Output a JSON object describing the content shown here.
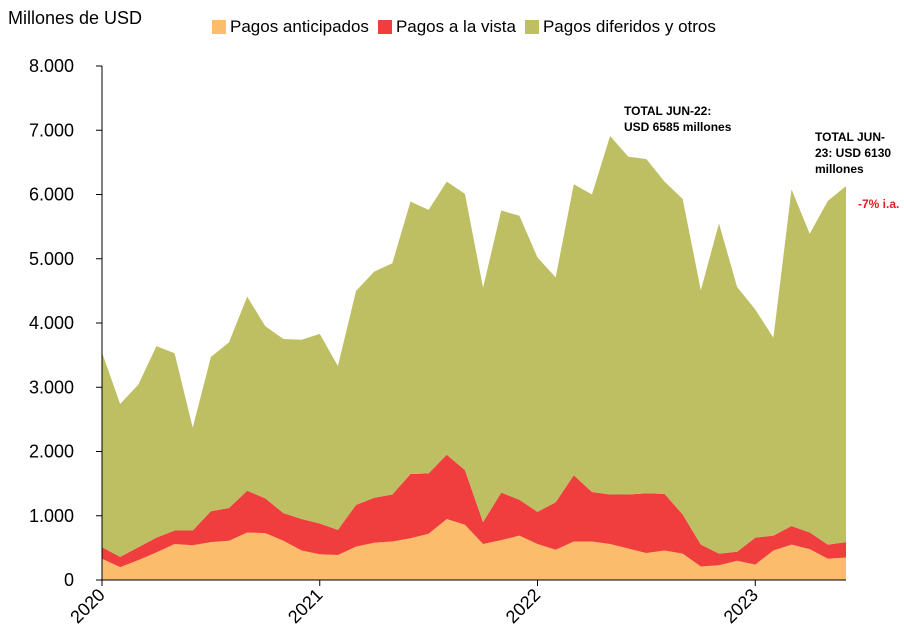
{
  "unit_label": "Millones de USD",
  "legend": [
    {
      "label": "Pagos anticipados",
      "color": "#fbbd6c"
    },
    {
      "label": "Pagos a la vista",
      "color": "#f03e3e"
    },
    {
      "label": "Pagos diferidos y otros",
      "color": "#bdbf62"
    }
  ],
  "annotations": {
    "jun22_line1": "TOTAL JUN-22:",
    "jun22_line2": "USD 6585 millones",
    "jun23_line1": "TOTAL JUN-",
    "jun23_line2": "23: USD 6130",
    "jun23_line3": "millones",
    "yoy": "-7% i.a."
  },
  "chart_data": {
    "type": "area",
    "stacked": true,
    "ylim": [
      0,
      8000
    ],
    "yticks": [
      0,
      1000,
      2000,
      3000,
      4000,
      5000,
      6000,
      7000,
      8000
    ],
    "ytick_labels": [
      "0",
      "1.000",
      "2.000",
      "3.000",
      "4.000",
      "5.000",
      "6.000",
      "7.000",
      "8.000"
    ],
    "xticks": [
      {
        "x": "2020-01",
        "label": "2020"
      },
      {
        "x": "2021-01",
        "label": "2021"
      },
      {
        "x": "2022-01",
        "label": "2022"
      },
      {
        "x": "2023-01",
        "label": "2023"
      }
    ],
    "x": [
      "2020-01",
      "2020-02",
      "2020-03",
      "2020-04",
      "2020-05",
      "2020-06",
      "2020-07",
      "2020-08",
      "2020-09",
      "2020-10",
      "2020-11",
      "2020-12",
      "2021-01",
      "2021-02",
      "2021-03",
      "2021-04",
      "2021-05",
      "2021-06",
      "2021-07",
      "2021-08",
      "2021-09",
      "2021-10",
      "2021-11",
      "2021-12",
      "2022-01",
      "2022-02",
      "2022-03",
      "2022-04",
      "2022-05",
      "2022-06",
      "2022-07",
      "2022-08",
      "2022-09",
      "2022-10",
      "2022-11",
      "2022-12",
      "2023-01",
      "2023-02",
      "2023-03",
      "2023-04",
      "2023-05",
      "2023-06"
    ],
    "series": [
      {
        "name": "Pagos anticipados",
        "color": "#fbbd6c",
        "values": [
          330,
          200,
          310,
          430,
          560,
          540,
          590,
          610,
          740,
          730,
          610,
          460,
          400,
          390,
          520,
          580,
          600,
          650,
          720,
          950,
          860,
          560,
          620,
          690,
          560,
          470,
          600,
          600,
          560,
          490,
          420,
          460,
          410,
          210,
          230,
          300,
          240,
          460,
          550,
          480,
          330,
          350
        ]
      },
      {
        "name": "Pagos a la vista",
        "color": "#f03e3e",
        "values": [
          180,
          160,
          200,
          230,
          210,
          230,
          480,
          510,
          650,
          540,
          430,
          490,
          480,
          390,
          650,
          700,
          730,
          1000,
          940,
          1000,
          850,
          340,
          740,
          560,
          500,
          740,
          1030,
          770,
          770,
          840,
          930,
          880,
          610,
          340,
          180,
          140,
          420,
          230,
          290,
          260,
          220,
          240
        ]
      },
      {
        "name": "Pagos diferidos y otros",
        "color": "#bdbf62",
        "values": [
          3030,
          2380,
          2530,
          2980,
          2760,
          1600,
          2400,
          2580,
          3020,
          2680,
          2710,
          2790,
          2950,
          2550,
          3330,
          3520,
          3600,
          4240,
          4100,
          4250,
          4300,
          3650,
          4390,
          4420,
          3960,
          3500,
          4530,
          4630,
          5580,
          5260,
          5200,
          4860,
          4910,
          3960,
          5140,
          4120,
          3550,
          3080,
          5240,
          4650,
          5350,
          5540
        ]
      }
    ]
  }
}
